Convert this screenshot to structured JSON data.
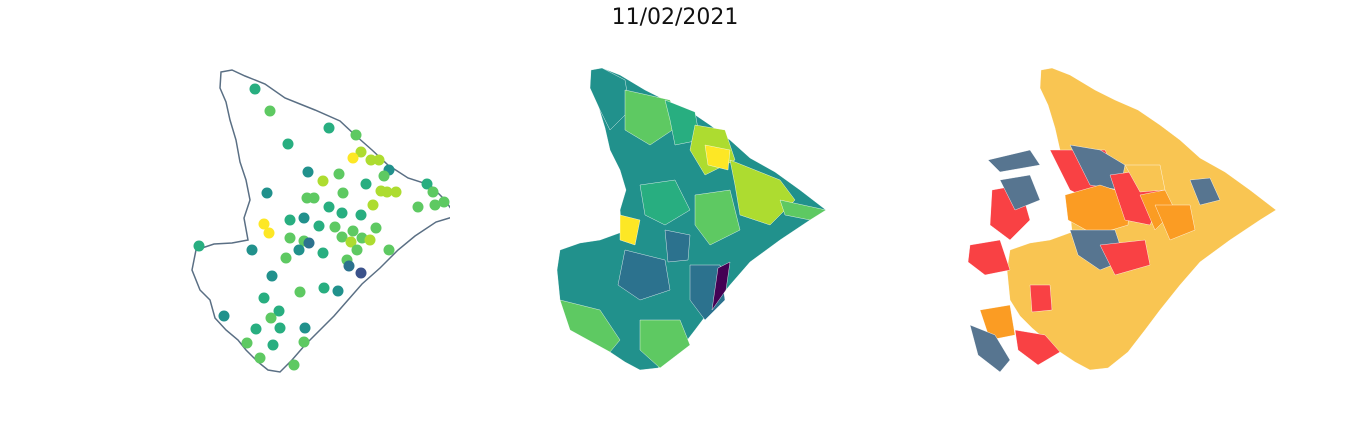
{
  "title": "11/02/2021",
  "colors": {
    "outline": "#5a6f84",
    "viridis": [
      "#440154",
      "#3b528b",
      "#2c728e",
      "#21918c",
      "#28ae80",
      "#5ec962",
      "#addc30",
      "#fde725"
    ],
    "risk": {
      "low": "#f9c552",
      "moderate": "#fb9c23",
      "high": "#f94144",
      "other": "#577590"
    }
  },
  "panels": [
    {
      "name": "point-map",
      "type": "scatter-points"
    },
    {
      "name": "choropleth-continuous",
      "type": "choropleth",
      "palette": "viridis"
    },
    {
      "name": "choropleth-categorical",
      "type": "choropleth",
      "palette": "risk"
    }
  ]
}
